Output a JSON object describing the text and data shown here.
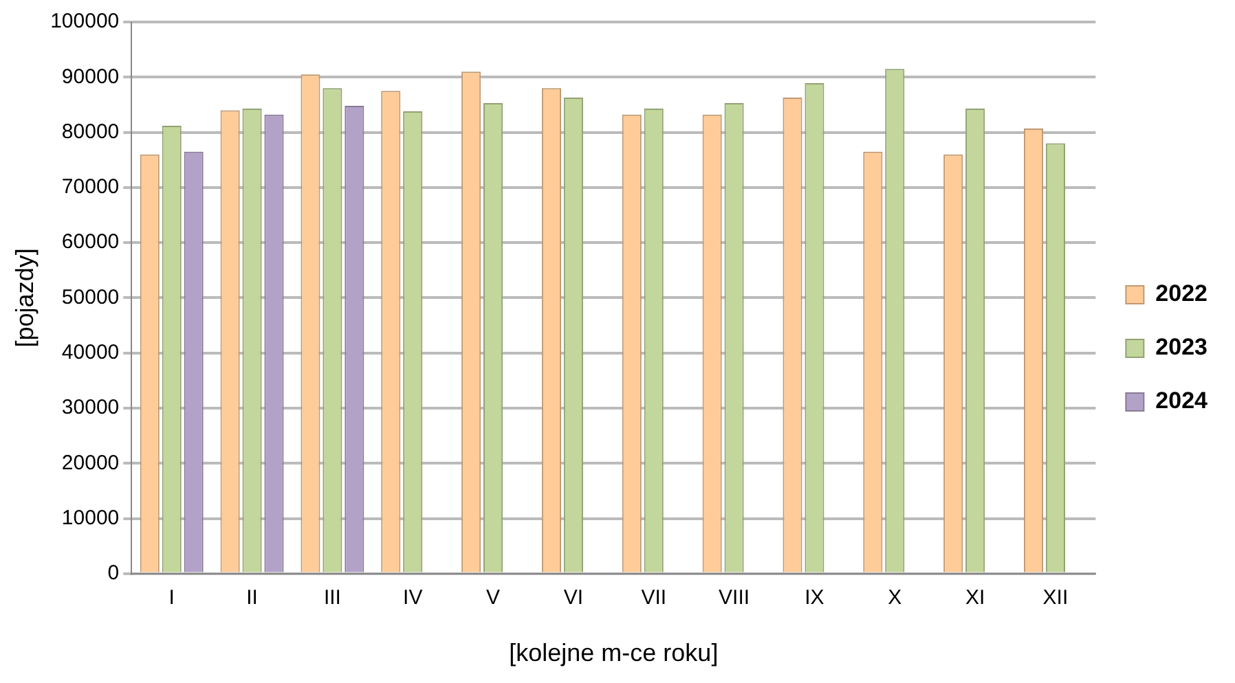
{
  "chart_data": {
    "type": "bar",
    "xlabel": "[kolejne m-ce roku]",
    "ylabel": "[pojazdy]",
    "categories": [
      "I",
      "II",
      "III",
      "IV",
      "V",
      "VI",
      "VII",
      "VIII",
      "IX",
      "X",
      "XI",
      "XII"
    ],
    "series": [
      {
        "name": "2022",
        "color": "#ffcc99",
        "values": [
          76000,
          84000,
          90500,
          87500,
          91000,
          88000,
          83200,
          83200,
          86300,
          76500,
          76000,
          80700
        ]
      },
      {
        "name": "2023",
        "color": "#c3d69b",
        "values": [
          81200,
          84300,
          88000,
          83800,
          85300,
          86300,
          84300,
          85300,
          88900,
          91500,
          84300,
          78000
        ]
      },
      {
        "name": "2024",
        "color": "#b3a2c7",
        "values": [
          76500,
          83200,
          84800,
          null,
          null,
          null,
          null,
          null,
          null,
          null,
          null,
          null
        ]
      }
    ],
    "ylim": [
      0,
      100000
    ],
    "yticks": [
      0,
      10000,
      20000,
      30000,
      40000,
      50000,
      60000,
      70000,
      80000,
      90000,
      100000
    ],
    "grid": "y",
    "legend": "right"
  }
}
